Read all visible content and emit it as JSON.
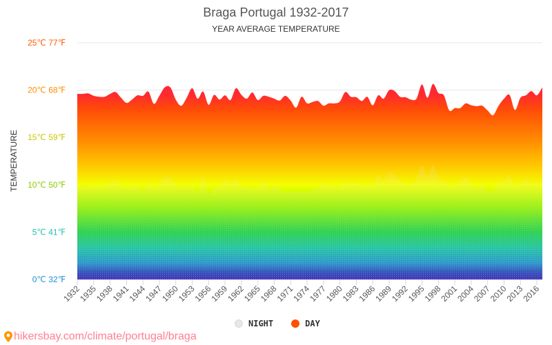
{
  "chart_data": {
    "type": "area",
    "title": "Braga Portugal 1932-2017",
    "subtitle": "YEAR AVERAGE TEMPERATURE",
    "ylabel": "TEMPERATURE",
    "xlabel": "",
    "ylim": [
      0,
      25
    ],
    "yticks": [
      {
        "value": 0,
        "label": "0℃ 32℉",
        "color": "#1e90d0"
      },
      {
        "value": 5,
        "label": "5℃ 41℉",
        "color": "#20c0b0"
      },
      {
        "value": 10,
        "label": "10℃ 50℉",
        "color": "#8ccc00"
      },
      {
        "value": 15,
        "label": "15℃ 59℉",
        "color": "#c8c800"
      },
      {
        "value": 20,
        "label": "20℃ 68℉",
        "color": "#ff8c00"
      },
      {
        "value": 25,
        "label": "25℃ 77℉",
        "color": "#ff5a00"
      }
    ],
    "x_start": 1932,
    "x_end": 2017,
    "xtick_step": 3,
    "grid": true,
    "legend_position": "bottom",
    "series": [
      {
        "name": "NIGHT",
        "color": "#dddddd",
        "values": [
          9.9,
          9.8,
          9.8,
          9.85,
          9.85,
          9.9,
          10.2,
          10.35,
          10.0,
          9.65,
          9.85,
          10.0,
          9.4,
          10.1,
          9.7,
          10.2,
          10.8,
          10.75,
          9.9,
          9.8,
          9.8,
          9.8,
          9.25,
          10.8,
          9.0,
          9.8,
          9.85,
          10.5,
          10.1,
          10.65,
          9.8,
          9.8,
          9.6,
          9.7,
          10.3,
          9.55,
          9.9,
          9.5,
          9.25,
          9.25,
          9.25,
          9.25,
          9.2,
          9.5,
          9.65,
          10.15,
          9.9,
          9.8,
          9.8,
          10.3,
          10.0,
          10.2,
          9.9,
          10.1,
          10.0,
          11.0,
          10.45,
          11.35,
          11.0,
          10.5,
          10.1,
          10.15,
          10.55,
          12.1,
          10.9,
          12.1,
          10.7,
          10.35,
          10.0,
          10.0,
          10.45,
          10.8,
          10.2,
          9.6,
          10.0,
          9.35,
          9.35,
          10.2,
          10.45,
          10.9,
          10.0,
          10.2,
          10.65,
          10.2,
          10.2,
          10.2
        ]
      },
      {
        "name": "DAY",
        "color": "#ff5000",
        "values": [
          19.6,
          19.6,
          19.65,
          19.4,
          19.3,
          19.3,
          19.6,
          19.8,
          19.2,
          18.65,
          19.0,
          19.45,
          19.4,
          19.85,
          18.55,
          19.4,
          20.3,
          20.3,
          19.0,
          18.35,
          19.2,
          20.2,
          19.1,
          19.85,
          18.45,
          19.5,
          19.0,
          19.45,
          18.95,
          20.2,
          19.5,
          19.1,
          19.75,
          18.95,
          19.4,
          19.3,
          19.1,
          18.9,
          19.4,
          18.9,
          18.15,
          19.3,
          18.6,
          18.75,
          18.85,
          18.35,
          18.6,
          18.6,
          18.8,
          19.8,
          19.3,
          19.25,
          18.85,
          19.3,
          18.4,
          19.45,
          19.1,
          20.0,
          19.9,
          19.3,
          19.25,
          19.0,
          19.1,
          20.6,
          19.2,
          20.65,
          19.7,
          19.45,
          17.85,
          18.1,
          18.1,
          18.6,
          18.4,
          18.3,
          18.35,
          17.85,
          17.35,
          18.35,
          19.1,
          19.5,
          17.9,
          19.2,
          19.45,
          19.9,
          19.45,
          20.3
        ]
      }
    ]
  },
  "legend": {
    "night": "NIGHT",
    "day": "DAY"
  },
  "footer": {
    "link": "hikersbay.com/climate/portugal/braga"
  }
}
